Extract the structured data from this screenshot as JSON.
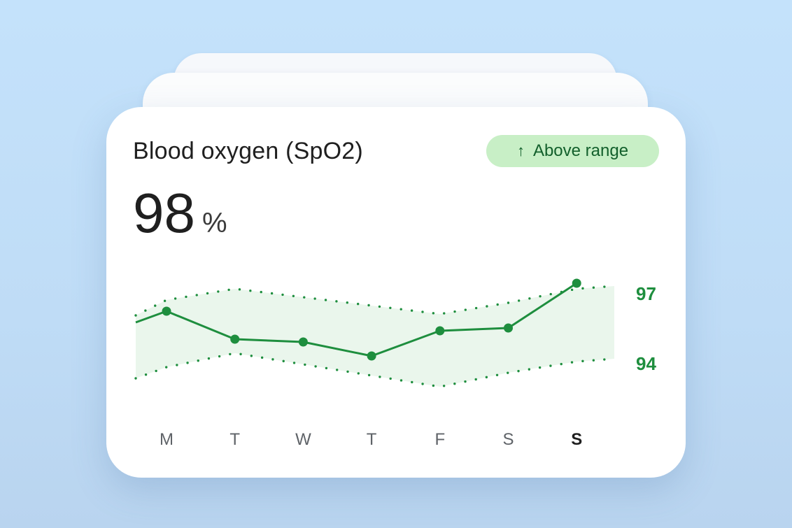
{
  "card": {
    "title": "Blood oxygen (SpO2)",
    "badge": {
      "icon": "arrow-up-icon",
      "label": "Above range"
    },
    "value": "98",
    "unit": "%"
  },
  "colors": {
    "line": "#1e8e3e",
    "band": "#eaf6ec",
    "text_dark": "#1f1f1f",
    "day_label": "#5f6368",
    "badge_bg": "#c8efc6",
    "badge_text": "#13602c"
  },
  "chart_data": {
    "type": "line",
    "categories": [
      "M",
      "T",
      "W",
      "T",
      "F",
      "S",
      "S"
    ],
    "highlight_category_index": 6,
    "series": [
      {
        "values": [
          95.6,
          95.1,
          95.05,
          94.8,
          95.25,
          95.3,
          96.1
        ]
      }
    ],
    "range_band": {
      "upper": [
        95.8,
        96.0,
        95.85,
        95.7,
        95.55,
        95.75,
        96.0
      ],
      "lower": [
        94.6,
        94.85,
        94.65,
        94.45,
        94.25,
        94.5,
        94.7
      ],
      "leading_value": 95.4,
      "band_upper_label": "97",
      "band_lower_label": "94"
    },
    "grid": false,
    "legend": "none"
  }
}
